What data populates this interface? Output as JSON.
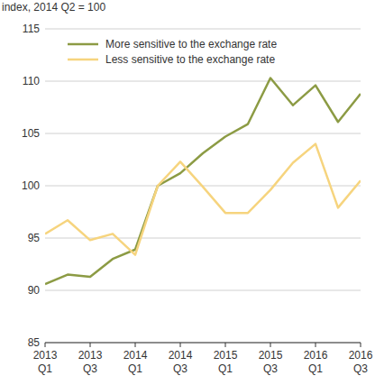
{
  "chart_data": {
    "type": "line",
    "y_label": "index, 2014 Q2 = 100",
    "categories": [
      "2013 Q1",
      null,
      "2013 Q3",
      null,
      "2014 Q1",
      null,
      "2014 Q3",
      null,
      "2015 Q1",
      null,
      "2015 Q3",
      null,
      "2016 Q1",
      null,
      "2016 Q3"
    ],
    "series": [
      {
        "name": "More sensitive to the exchange rate",
        "color": "#8c9b44",
        "values": [
          90.6,
          91.5,
          91.3,
          93.0,
          93.9,
          100,
          101.2,
          103.1,
          104.7,
          105.9,
          110.3,
          107.7,
          109.6,
          106.1,
          108.8
        ]
      },
      {
        "name": "Less sensitive to the exchange rate",
        "color": "#f6d47e",
        "values": [
          95.4,
          96.7,
          94.8,
          95.4,
          93.4,
          100,
          102.3,
          99.9,
          97.4,
          97.4,
          99.6,
          102.2,
          104.0,
          97.9,
          100.5
        ]
      }
    ],
    "ylim": [
      85,
      115
    ],
    "yticks": [
      85,
      90,
      95,
      100,
      105,
      110,
      115
    ],
    "grid": true,
    "legend": "upper left"
  }
}
